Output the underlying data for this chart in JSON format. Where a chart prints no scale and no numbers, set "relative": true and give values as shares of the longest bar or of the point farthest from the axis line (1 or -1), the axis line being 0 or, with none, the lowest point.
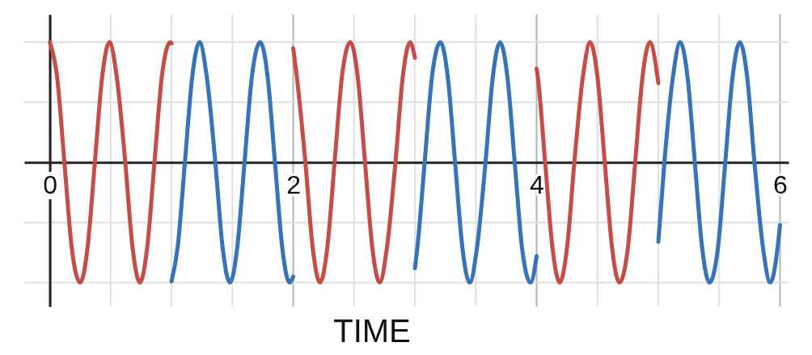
{
  "chart_data": {
    "type": "line",
    "xlabel": "TIME",
    "relative": true,
    "grid": true,
    "xlim": [
      -0.21,
      6.07
    ],
    "xticks": [
      0,
      {
        "value": 0.5,
        "label": null
      },
      {
        "value": 1,
        "label": null
      },
      {
        "value": 1.5,
        "label": null
      },
      2,
      {
        "value": 2.5,
        "label": null
      },
      {
        "value": 3,
        "label": null
      },
      {
        "value": 3.5,
        "label": null
      },
      4,
      {
        "value": 4.5,
        "label": null
      },
      {
        "value": 5,
        "label": null
      },
      {
        "value": 5.5,
        "label": null
      },
      6
    ],
    "series": [
      {
        "color": "#c44e47",
        "x": [
          0,
          0.06,
          0.12,
          0.18,
          0.25,
          0.31,
          0.37,
          0.43,
          0.49,
          0.55,
          0.62,
          0.68,
          0.74,
          0.8,
          0.86,
          0.92,
          0.99,
          1,
          1.5,
          2,
          2.03,
          2.1,
          2.16,
          2.22,
          2.28,
          2.34,
          2.4,
          2.47,
          2.53,
          2.59,
          2.65,
          2.71,
          2.77,
          2.84,
          2.9,
          2.96,
          3,
          3.5,
          4,
          4.01,
          4.07,
          4.13,
          4.19,
          4.25,
          4.31,
          4.38,
          4.44,
          4.5,
          4.56,
          4.62,
          4.68,
          4.75,
          4.81,
          4.87,
          4.93,
          5
        ],
        "values": [
          1,
          0.71,
          0,
          -0.71,
          -1,
          -0.71,
          0,
          0.71,
          1,
          0.71,
          0,
          -0.71,
          -1,
          -0.71,
          0,
          0.71,
          1,
          0.99,
          null,
          0.95,
          0.71,
          0,
          -0.71,
          -1,
          -0.71,
          0,
          0.71,
          1,
          0.71,
          0,
          -0.71,
          -1,
          -0.71,
          0,
          0.71,
          1,
          0.87,
          null,
          0.78,
          0.71,
          0,
          -0.71,
          -1,
          -0.71,
          0,
          0.71,
          1,
          0.71,
          0,
          -0.71,
          -1,
          -0.71,
          0,
          0.71,
          1,
          0.66
        ]
      },
      {
        "color": "#3873b5",
        "x": [
          1,
          1.05,
          1.11,
          1.17,
          1.23,
          1.29,
          1.36,
          1.42,
          1.48,
          1.54,
          1.6,
          1.66,
          1.73,
          1.79,
          1.85,
          1.91,
          1.97,
          2,
          2.5,
          3,
          3.02,
          3.08,
          3.14,
          3.21,
          3.27,
          3.33,
          3.39,
          3.45,
          3.51,
          3.58,
          3.64,
          3.7,
          3.76,
          3.82,
          3.88,
          3.95,
          4,
          4.5,
          5,
          5.05,
          5.12,
          5.18,
          5.24,
          5.3,
          5.36,
          5.42,
          5.49,
          5.55,
          5.61,
          5.67,
          5.73,
          5.79,
          5.86,
          5.92,
          5.98,
          6
        ],
        "values": [
          -0.99,
          -0.71,
          0,
          0.71,
          1,
          0.71,
          0,
          -0.71,
          -1,
          -0.71,
          0,
          0.71,
          1,
          0.71,
          0,
          -0.71,
          -1,
          -0.95,
          null,
          -0.88,
          -0.71,
          0,
          0.71,
          1,
          0.71,
          0,
          -0.71,
          -1,
          -0.71,
          0,
          0.71,
          1,
          0.71,
          0,
          -0.71,
          -1,
          -0.78,
          null,
          -0.66,
          0,
          0.71,
          1,
          0.71,
          0,
          -0.71,
          -1,
          -0.71,
          0,
          0.71,
          1,
          0.71,
          0,
          -0.71,
          -1,
          -0.71,
          -0.52
        ]
      }
    ]
  }
}
